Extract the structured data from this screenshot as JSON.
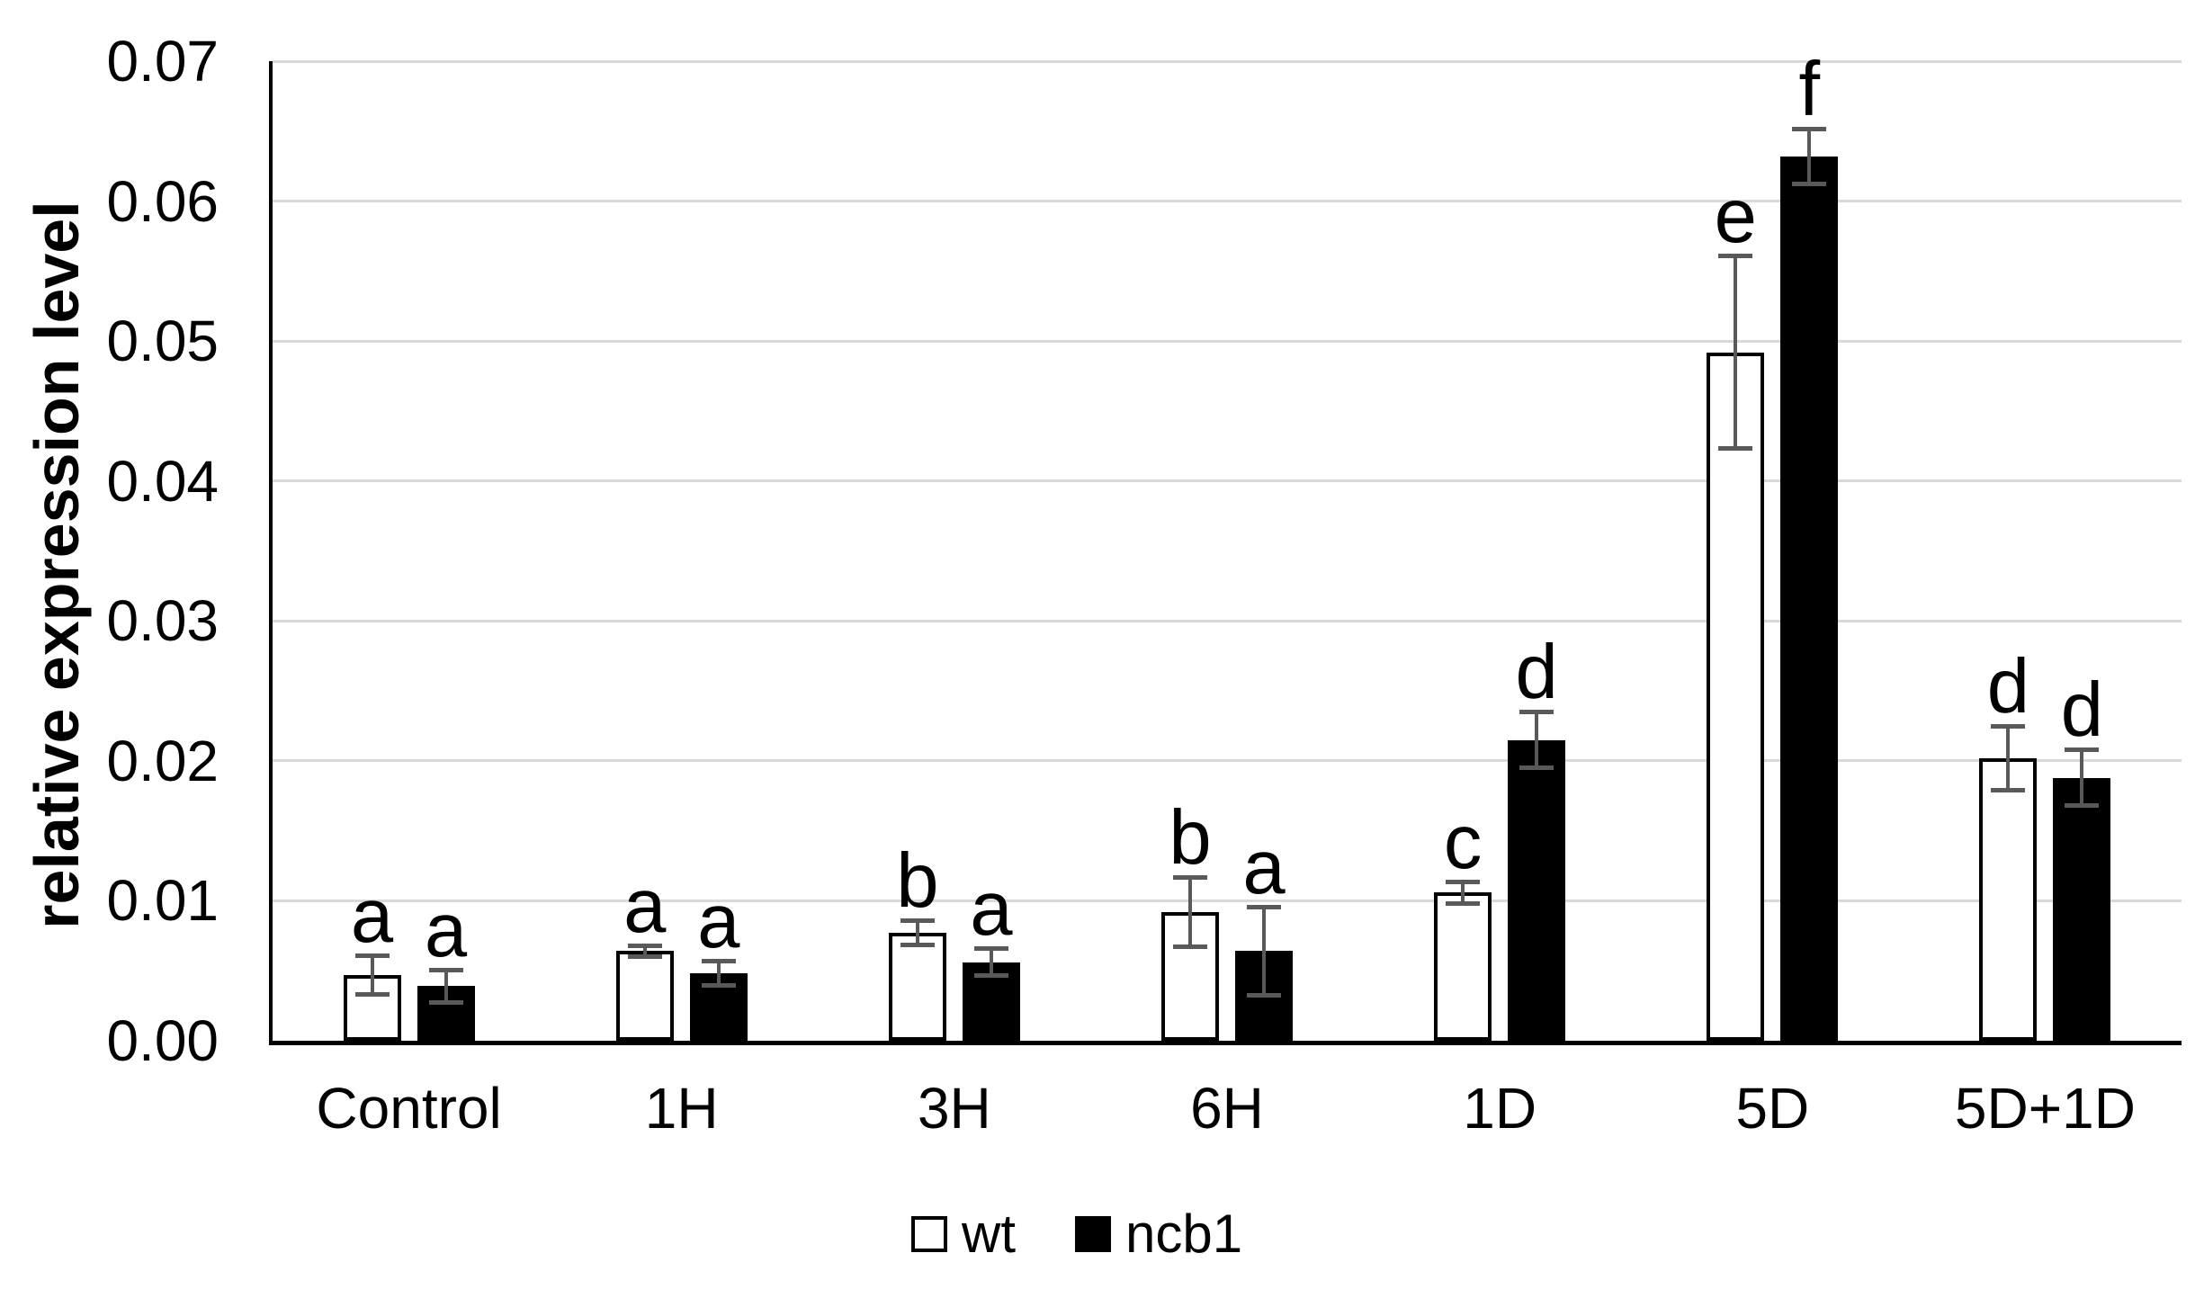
{
  "chart_data": {
    "type": "bar",
    "title": "",
    "ylabel": "relative expression level",
    "xlabel": "",
    "ylim": [
      0,
      0.07
    ],
    "ytick_step": 0.01,
    "ytick_decimals": 2,
    "grid": true,
    "legend_position": "bottom-center",
    "categories": [
      "Control",
      "1H",
      "3H",
      "6H",
      "1D",
      "5D",
      "5D+1D"
    ],
    "series": [
      {
        "name": "wt",
        "fill": "#ffffff",
        "stroke": "#000000",
        "values": [
          0.0047,
          0.0064,
          0.0077,
          0.0092,
          0.0106,
          0.0492,
          0.0202
        ],
        "errors": [
          0.0014,
          0.0004,
          0.0009,
          0.0025,
          0.0008,
          0.0069,
          0.0023
        ],
        "sig_letters": [
          "a",
          "a",
          "b",
          "b",
          "c",
          "e",
          "d"
        ]
      },
      {
        "name": "ncb1",
        "fill": "#000000",
        "stroke": "#000000",
        "values": [
          0.0039,
          0.0048,
          0.0056,
          0.0064,
          0.0215,
          0.0632,
          0.0188
        ],
        "errors": [
          0.0012,
          0.0009,
          0.001,
          0.0032,
          0.002,
          0.002,
          0.002
        ],
        "sig_letters": [
          "a",
          "a",
          "a",
          "a",
          "d",
          "f",
          "d"
        ]
      }
    ],
    "colors": {
      "background": "#ffffff",
      "gridline": "#d9d9d9",
      "axis": "#000000",
      "error_bar": "#595959",
      "text": "#000000"
    }
  }
}
